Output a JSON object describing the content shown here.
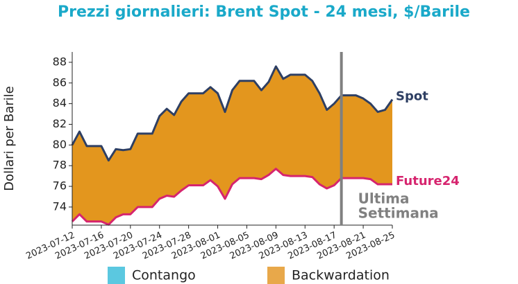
{
  "chart_data": {
    "type": "band",
    "title": "Prezzi giornalieri: Brent Spot - 24 mesi, $/Barile",
    "y_label": "Dollari per Barile",
    "x": [
      "2023-07-12",
      "2023-07-13",
      "2023-07-14",
      "2023-07-15",
      "2023-07-16",
      "2023-07-17",
      "2023-07-18",
      "2023-07-19",
      "2023-07-20",
      "2023-07-21",
      "2023-07-22",
      "2023-07-23",
      "2023-07-24",
      "2023-07-25",
      "2023-07-26",
      "2023-07-27",
      "2023-07-28",
      "2023-07-29",
      "2023-07-30",
      "2023-07-31",
      "2023-08-01",
      "2023-08-02",
      "2023-08-03",
      "2023-08-04",
      "2023-08-05",
      "2023-08-06",
      "2023-08-07",
      "2023-08-08",
      "2023-08-09",
      "2023-08-10",
      "2023-08-11",
      "2023-08-12",
      "2023-08-13",
      "2023-08-14",
      "2023-08-15",
      "2023-08-16",
      "2023-08-17",
      "2023-08-18",
      "2023-08-19",
      "2023-08-20",
      "2023-08-21",
      "2023-08-22",
      "2023-08-23",
      "2023-08-24",
      "2023-08-25"
    ],
    "series": [
      {
        "name": "Spot",
        "color": "#2e3f63",
        "values": [
          80.0,
          81.3,
          79.9,
          79.9,
          79.9,
          78.5,
          79.6,
          79.5,
          79.6,
          81.1,
          81.1,
          81.1,
          82.8,
          83.5,
          82.9,
          84.2,
          85.0,
          85.0,
          85.0,
          85.6,
          85.0,
          83.2,
          85.3,
          86.2,
          86.2,
          86.2,
          85.3,
          86.1,
          87.6,
          86.4,
          86.8,
          86.8,
          86.8,
          86.2,
          85.0,
          83.4,
          84.0,
          84.8,
          84.8,
          84.8,
          84.5,
          84.0,
          83.2,
          83.4,
          84.4
        ]
      },
      {
        "name": "Future24",
        "color": "#d6246e",
        "values": [
          72.6,
          73.3,
          72.6,
          72.6,
          72.6,
          72.3,
          73.0,
          73.3,
          73.3,
          74.0,
          74.0,
          74.0,
          74.8,
          75.1,
          75.0,
          75.6,
          76.1,
          76.1,
          76.1,
          76.6,
          76.0,
          74.8,
          76.2,
          76.8,
          76.8,
          76.8,
          76.7,
          77.1,
          77.7,
          77.1,
          77.0,
          77.0,
          77.0,
          76.9,
          76.2,
          75.8,
          76.1,
          76.8,
          76.8,
          76.8,
          76.8,
          76.7,
          76.2,
          76.2,
          76.2
        ]
      }
    ],
    "legend": [
      {
        "name": "Contango",
        "color": "#5bc8e0"
      },
      {
        "name": "Backwardation",
        "color": "#e8a84a"
      }
    ],
    "band_color": "#e3961e",
    "xlim": [
      "2023-07-12",
      "2023-08-25"
    ],
    "xticks": [
      "2023-07-12",
      "2023-07-16",
      "2023-07-20",
      "2023-07-24",
      "2023-07-28",
      "2023-08-01",
      "2023-08-05",
      "2023-08-09",
      "2023-08-13",
      "2023-08-17",
      "2023-08-21",
      "2023-08-25"
    ],
    "ylim": [
      72.25,
      89
    ],
    "yticks": [
      74,
      76,
      78,
      80,
      82,
      84,
      86,
      88
    ],
    "annotation": {
      "x": "2023-08-18",
      "lines": [
        "Ultima",
        "Settimana"
      ],
      "color": "#808080"
    }
  }
}
